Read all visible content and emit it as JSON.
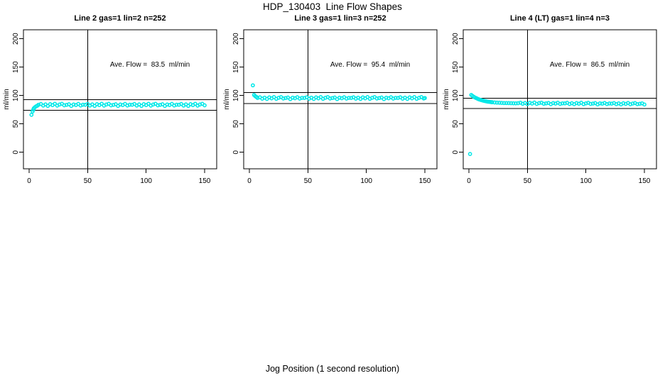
{
  "figure": {
    "title": "HDP_130403  Line Flow Shapes",
    "x_label": "Jog Position (1 second resolution)",
    "bg_color": "#ffffff",
    "axis_color": "#000000",
    "point_color": "#00e8e8"
  },
  "chart_data": [
    {
      "type": "scatter",
      "title": "Line 2 gas=1 lin=2 n=252",
      "y_label": "ml/min",
      "ave_label": "Ave. Flow =  83.5  ml/min",
      "ave_flow": 83.5,
      "n": 252,
      "x_ticks": [
        0,
        50,
        100,
        150
      ],
      "y_ticks": [
        0,
        50,
        100,
        150,
        200
      ],
      "xlim": [
        -5,
        160
      ],
      "ylim": [
        -29,
        216
      ],
      "grid": false,
      "vline_x": 50,
      "ref_lines": [
        93,
        74
      ],
      "points": [
        [
          2,
          66
        ],
        [
          3,
          72
        ],
        [
          3.5,
          75
        ],
        [
          4,
          77.5
        ],
        [
          5,
          79.5
        ],
        [
          6,
          81
        ],
        [
          7,
          82
        ],
        [
          8,
          83.8
        ],
        [
          10,
          85.1
        ],
        [
          12,
          82.4
        ],
        [
          14,
          84.4
        ],
        [
          16,
          81.8
        ],
        [
          18,
          84.8
        ],
        [
          20,
          83.1
        ],
        [
          22,
          85.5
        ],
        [
          24,
          82.2
        ],
        [
          26,
          84.1
        ],
        [
          28,
          85.4
        ],
        [
          30,
          82.7
        ],
        [
          32,
          83.6
        ],
        [
          34,
          84.6
        ],
        [
          36,
          81.6
        ],
        [
          38,
          84.3
        ],
        [
          40,
          83.3
        ],
        [
          42,
          85.2
        ],
        [
          44,
          82.5
        ],
        [
          46,
          83.9
        ],
        [
          48,
          83.8
        ],
        [
          50,
          85.1
        ],
        [
          52,
          82.4
        ],
        [
          54,
          84.4
        ],
        [
          56,
          81.8
        ],
        [
          58,
          84.8
        ],
        [
          60,
          83.1
        ],
        [
          62,
          85.5
        ],
        [
          64,
          82.2
        ],
        [
          66,
          84.1
        ],
        [
          68,
          85.4
        ],
        [
          70,
          82.7
        ],
        [
          72,
          83.6
        ],
        [
          74,
          84.6
        ],
        [
          76,
          81.6
        ],
        [
          78,
          84.3
        ],
        [
          80,
          83.3
        ],
        [
          82,
          85.2
        ],
        [
          84,
          82.5
        ],
        [
          86,
          83.9
        ],
        [
          88,
          83.8
        ],
        [
          90,
          85.1
        ],
        [
          92,
          82.4
        ],
        [
          94,
          84.4
        ],
        [
          96,
          81.8
        ],
        [
          98,
          84.8
        ],
        [
          100,
          83.1
        ],
        [
          102,
          85.5
        ],
        [
          104,
          82.2
        ],
        [
          106,
          84.1
        ],
        [
          108,
          85.4
        ],
        [
          110,
          82.7
        ],
        [
          112,
          83.6
        ],
        [
          114,
          84.6
        ],
        [
          116,
          81.6
        ],
        [
          118,
          84.3
        ],
        [
          120,
          83.3
        ],
        [
          122,
          85.2
        ],
        [
          124,
          82.5
        ],
        [
          126,
          83.9
        ],
        [
          128,
          83.8
        ],
        [
          130,
          85.1
        ],
        [
          132,
          82.4
        ],
        [
          134,
          84.4
        ],
        [
          136,
          81.8
        ],
        [
          138,
          84.8
        ],
        [
          140,
          83.1
        ],
        [
          142,
          85.5
        ],
        [
          144,
          82.2
        ],
        [
          146,
          84.1
        ],
        [
          148,
          85.4
        ],
        [
          150,
          82.7
        ]
      ]
    },
    {
      "type": "scatter",
      "title": "Line 3 gas=1 lin=3 n=252",
      "y_label": "ml/min",
      "ave_label": "Ave. Flow =  95.4  ml/min",
      "ave_flow": 95.4,
      "n": 252,
      "x_ticks": [
        0,
        50,
        100,
        150
      ],
      "y_ticks": [
        0,
        50,
        100,
        150,
        200
      ],
      "xlim": [
        -5,
        160
      ],
      "ylim": [
        -29,
        216
      ],
      "grid": false,
      "vline_x": 50,
      "ref_lines": [
        105,
        86
      ],
      "points": [
        [
          3,
          118
        ],
        [
          4,
          101
        ],
        [
          5,
          99
        ],
        [
          6,
          97.5
        ],
        [
          7,
          95.8
        ],
        [
          9,
          96.9
        ],
        [
          11,
          94.5
        ],
        [
          13,
          96.3
        ],
        [
          15,
          94.0
        ],
        [
          17,
          96.7
        ],
        [
          19,
          95.1
        ],
        [
          21,
          97.3
        ],
        [
          23,
          94.3
        ],
        [
          25,
          96.0
        ],
        [
          27,
          97.2
        ],
        [
          29,
          94.8
        ],
        [
          31,
          95.6
        ],
        [
          33,
          96.5
        ],
        [
          35,
          93.8
        ],
        [
          37,
          96.2
        ],
        [
          39,
          95.3
        ],
        [
          41,
          97.0
        ],
        [
          43,
          94.6
        ],
        [
          45,
          95.9
        ],
        [
          47,
          95.8
        ],
        [
          49,
          96.9
        ],
        [
          51,
          94.5
        ],
        [
          53,
          96.3
        ],
        [
          55,
          94.0
        ],
        [
          57,
          96.7
        ],
        [
          59,
          95.1
        ],
        [
          61,
          97.3
        ],
        [
          63,
          94.3
        ],
        [
          65,
          96.0
        ],
        [
          67,
          97.2
        ],
        [
          69,
          94.8
        ],
        [
          71,
          95.6
        ],
        [
          73,
          96.5
        ],
        [
          75,
          93.8
        ],
        [
          77,
          96.2
        ],
        [
          79,
          95.3
        ],
        [
          81,
          97.0
        ],
        [
          83,
          94.6
        ],
        [
          85,
          95.9
        ],
        [
          87,
          95.8
        ],
        [
          89,
          96.9
        ],
        [
          91,
          94.5
        ],
        [
          93,
          96.3
        ],
        [
          95,
          94.0
        ],
        [
          97,
          96.7
        ],
        [
          99,
          95.1
        ],
        [
          101,
          97.3
        ],
        [
          103,
          94.3
        ],
        [
          105,
          96.0
        ],
        [
          107,
          97.2
        ],
        [
          109,
          94.8
        ],
        [
          111,
          95.6
        ],
        [
          113,
          96.5
        ],
        [
          115,
          93.8
        ],
        [
          117,
          96.2
        ],
        [
          119,
          95.3
        ],
        [
          121,
          97.0
        ],
        [
          123,
          94.6
        ],
        [
          125,
          95.9
        ],
        [
          127,
          95.8
        ],
        [
          129,
          96.9
        ],
        [
          131,
          94.5
        ],
        [
          133,
          96.3
        ],
        [
          135,
          94.0
        ],
        [
          137,
          96.7
        ],
        [
          139,
          95.1
        ],
        [
          141,
          97.3
        ],
        [
          143,
          94.3
        ],
        [
          145,
          96.0
        ],
        [
          147,
          97.2
        ],
        [
          149,
          94.8
        ],
        [
          150,
          95.6
        ]
      ]
    },
    {
      "type": "scatter",
      "title": "Line 4 (LT) gas=1 lin=4 n=3",
      "y_label": "ml/min",
      "ave_label": "Ave. Flow =  86.5  ml/min",
      "ave_flow": 86.5,
      "n": 3,
      "x_ticks": [
        0,
        50,
        100,
        150
      ],
      "y_ticks": [
        0,
        50,
        100,
        150,
        200
      ],
      "xlim": [
        -5,
        160
      ],
      "ylim": [
        -29,
        216
      ],
      "grid": false,
      "vline_x": 50,
      "ref_lines": [
        95,
        77
      ],
      "points": [
        [
          1,
          -3
        ],
        [
          2,
          101
        ],
        [
          3,
          99.5
        ],
        [
          4,
          98
        ],
        [
          5,
          96.8
        ],
        [
          6,
          95.7
        ],
        [
          7,
          94.7
        ],
        [
          8,
          93.8
        ],
        [
          9,
          93
        ],
        [
          10,
          92.3
        ],
        [
          11,
          91.7
        ],
        [
          12,
          91.1
        ],
        [
          13,
          90.6
        ],
        [
          14,
          90.1
        ],
        [
          15,
          89.7
        ],
        [
          16,
          89.3
        ],
        [
          17,
          89
        ],
        [
          18,
          88.7
        ],
        [
          19,
          88.4
        ],
        [
          20,
          88.2
        ],
        [
          22,
          87.8
        ],
        [
          24,
          87.5
        ],
        [
          26,
          87.2
        ],
        [
          28,
          87.0
        ],
        [
          30,
          86.8
        ],
        [
          32,
          86.7
        ],
        [
          34,
          86.6
        ],
        [
          36,
          86.5
        ],
        [
          38,
          86.4
        ],
        [
          40,
          86.3
        ],
        [
          42,
          86.5
        ],
        [
          44,
          87.4
        ],
        [
          46,
          85.5
        ],
        [
          48,
          86.9
        ],
        [
          50,
          85.0
        ],
        [
          52,
          87.1
        ],
        [
          54,
          85.9
        ],
        [
          56,
          87.6
        ],
        [
          58,
          85.3
        ],
        [
          60,
          86.6
        ],
        [
          62,
          87.4
        ],
        [
          64,
          85.5
        ],
        [
          66,
          86.2
        ],
        [
          68,
          86.9
        ],
        [
          70,
          84.8
        ],
        [
          72,
          86.7
        ],
        [
          74,
          85.9
        ],
        [
          76,
          87.2
        ],
        [
          78,
          85.3
        ],
        [
          80,
          86.3
        ],
        [
          82,
          86.2
        ],
        [
          84,
          87.1
        ],
        [
          86,
          85.1
        ],
        [
          88,
          86.5
        ],
        [
          90,
          84.7
        ],
        [
          92,
          86.8
        ],
        [
          94,
          85.6
        ],
        [
          96,
          87.3
        ],
        [
          98,
          84.9
        ],
        [
          100,
          86.2
        ],
        [
          102,
          87.1
        ],
        [
          104,
          85.2
        ],
        [
          106,
          85.9
        ],
        [
          108,
          86.6
        ],
        [
          110,
          84.4
        ],
        [
          112,
          86.3
        ],
        [
          114,
          85.6
        ],
        [
          116,
          86.9
        ],
        [
          118,
          85.0
        ],
        [
          120,
          86.0
        ],
        [
          122,
          85.8
        ],
        [
          124,
          86.7
        ],
        [
          126,
          84.8
        ],
        [
          128,
          86.2
        ],
        [
          130,
          84.4
        ],
        [
          132,
          86.5
        ],
        [
          134,
          85.2
        ],
        [
          136,
          86.9
        ],
        [
          138,
          84.6
        ],
        [
          140,
          85.9
        ],
        [
          142,
          86.8
        ],
        [
          144,
          84.9
        ],
        [
          146,
          85.5
        ],
        [
          148,
          86.2
        ],
        [
          150,
          84.1
        ]
      ]
    }
  ]
}
